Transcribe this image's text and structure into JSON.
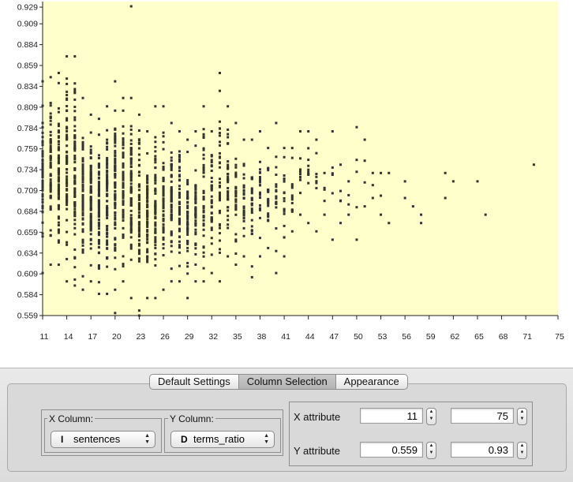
{
  "chart_data": {
    "type": "scatter",
    "xlim": [
      11,
      75
    ],
    "ylim": [
      0.559,
      0.93
    ],
    "x_ticks": [
      11,
      14,
      17,
      20,
      23,
      26,
      29,
      32,
      35,
      38,
      41,
      44,
      47,
      50,
      53,
      56,
      59,
      62,
      65,
      68,
      71,
      75
    ],
    "y_ticks": [
      0.559,
      0.584,
      0.609,
      0.634,
      0.659,
      0.684,
      0.709,
      0.734,
      0.759,
      0.784,
      0.809,
      0.834,
      0.859,
      0.884,
      0.909,
      0.929
    ],
    "background": "#ffffcc",
    "point_color": "#333333",
    "grid": false,
    "x_columns": [
      {
        "x": 11,
        "min": 0.61,
        "max": 0.84,
        "n": 60
      },
      {
        "x": 12,
        "min": 0.62,
        "max": 0.845,
        "n": 60
      },
      {
        "x": 13,
        "min": 0.62,
        "max": 0.85,
        "n": 65
      },
      {
        "x": 14,
        "min": 0.6,
        "max": 0.87,
        "n": 70
      },
      {
        "x": 15,
        "min": 0.595,
        "max": 0.87,
        "n": 75
      },
      {
        "x": 16,
        "min": 0.59,
        "max": 0.82,
        "n": 80
      },
      {
        "x": 17,
        "min": 0.6,
        "max": 0.8,
        "n": 80
      },
      {
        "x": 18,
        "min": 0.585,
        "max": 0.795,
        "n": 80
      },
      {
        "x": 19,
        "min": 0.585,
        "max": 0.81,
        "n": 78
      },
      {
        "x": 20,
        "min": 0.59,
        "max": 0.84,
        "n": 78
      },
      {
        "x": 21,
        "min": 0.6,
        "max": 0.82,
        "n": 75
      },
      {
        "x": 22,
        "min": 0.58,
        "max": 0.82,
        "n": 72
      },
      {
        "x": 23,
        "min": 0.565,
        "max": 0.8,
        "n": 68
      },
      {
        "x": 24,
        "min": 0.58,
        "max": 0.78,
        "n": 62
      },
      {
        "x": 25,
        "min": 0.58,
        "max": 0.81,
        "n": 62
      },
      {
        "x": 26,
        "min": 0.59,
        "max": 0.81,
        "n": 58
      },
      {
        "x": 27,
        "min": 0.6,
        "max": 0.79,
        "n": 55
      },
      {
        "x": 28,
        "min": 0.6,
        "max": 0.78,
        "n": 52
      },
      {
        "x": 29,
        "min": 0.58,
        "max": 0.77,
        "n": 48
      },
      {
        "x": 30,
        "min": 0.6,
        "max": 0.78,
        "n": 45
      },
      {
        "x": 31,
        "min": 0.6,
        "max": 0.81,
        "n": 42
      },
      {
        "x": 32,
        "min": 0.61,
        "max": 0.78,
        "n": 40
      },
      {
        "x": 33,
        "min": 0.6,
        "max": 0.85,
        "n": 38
      },
      {
        "x": 34,
        "min": 0.63,
        "max": 0.81,
        "n": 36
      },
      {
        "x": 35,
        "min": 0.62,
        "max": 0.79,
        "n": 32
      },
      {
        "x": 36,
        "min": 0.63,
        "max": 0.77,
        "n": 30
      },
      {
        "x": 37,
        "min": 0.605,
        "max": 0.77,
        "n": 28
      },
      {
        "x": 38,
        "min": 0.63,
        "max": 0.78,
        "n": 26
      },
      {
        "x": 39,
        "min": 0.64,
        "max": 0.76,
        "n": 22
      },
      {
        "x": 40,
        "min": 0.61,
        "max": 0.79,
        "n": 20
      },
      {
        "x": 41,
        "min": 0.63,
        "max": 0.76,
        "n": 18
      },
      {
        "x": 42,
        "min": 0.66,
        "max": 0.76,
        "n": 14
      },
      {
        "x": 43,
        "min": 0.68,
        "max": 0.78,
        "n": 12
      },
      {
        "x": 44,
        "min": 0.67,
        "max": 0.78,
        "n": 10
      },
      {
        "x": 45,
        "min": 0.66,
        "max": 0.77,
        "n": 8
      },
      {
        "x": 46,
        "min": 0.68,
        "max": 0.73,
        "n": 5
      },
      {
        "x": 47,
        "min": 0.65,
        "max": 0.78,
        "n": 6
      },
      {
        "x": 48,
        "min": 0.67,
        "max": 0.74,
        "n": 5
      },
      {
        "x": 49,
        "min": 0.68,
        "max": 0.72,
        "n": 4
      },
      {
        "x": 50,
        "min": 0.65,
        "max": 0.785,
        "n": 5
      },
      {
        "x": 51,
        "min": 0.69,
        "max": 0.77,
        "n": 4
      },
      {
        "x": 52,
        "min": 0.7,
        "max": 0.73,
        "n": 3
      },
      {
        "x": 53,
        "min": 0.68,
        "max": 0.73,
        "n": 3
      },
      {
        "x": 54,
        "min": 0.67,
        "max": 0.73,
        "n": 2
      },
      {
        "x": 56,
        "min": 0.7,
        "max": 0.72,
        "n": 2
      },
      {
        "x": 57,
        "min": 0.69,
        "max": 0.7,
        "n": 1
      },
      {
        "x": 58,
        "min": 0.67,
        "max": 0.68,
        "n": 2
      },
      {
        "x": 61,
        "min": 0.7,
        "max": 0.73,
        "n": 2
      },
      {
        "x": 62,
        "min": 0.72,
        "max": 0.72,
        "n": 1
      },
      {
        "x": 65,
        "min": 0.72,
        "max": 0.72,
        "n": 1
      },
      {
        "x": 66,
        "min": 0.68,
        "max": 0.68,
        "n": 1
      },
      {
        "x": 72,
        "min": 0.74,
        "max": 0.74,
        "n": 1
      }
    ],
    "extra_points": [
      [
        22,
        0.93
      ],
      [
        23,
        0.559
      ],
      [
        20,
        0.562
      ],
      [
        33,
        0.85
      ]
    ]
  },
  "tabs": [
    {
      "label": "Default Settings",
      "active": false
    },
    {
      "label": "Column Selection",
      "active": true
    },
    {
      "label": "Appearance",
      "active": false
    }
  ],
  "x_column": {
    "title": "X Column:",
    "type_glyph": "I",
    "value": "sentences"
  },
  "y_column": {
    "title": "Y Column:",
    "type_glyph": "D",
    "value": "terms_ratio"
  },
  "x_attribute": {
    "label": "X attribute",
    "min": "11",
    "max": "75"
  },
  "y_attribute": {
    "label": "Y attribute",
    "min": "0.559",
    "max": "0.93"
  }
}
